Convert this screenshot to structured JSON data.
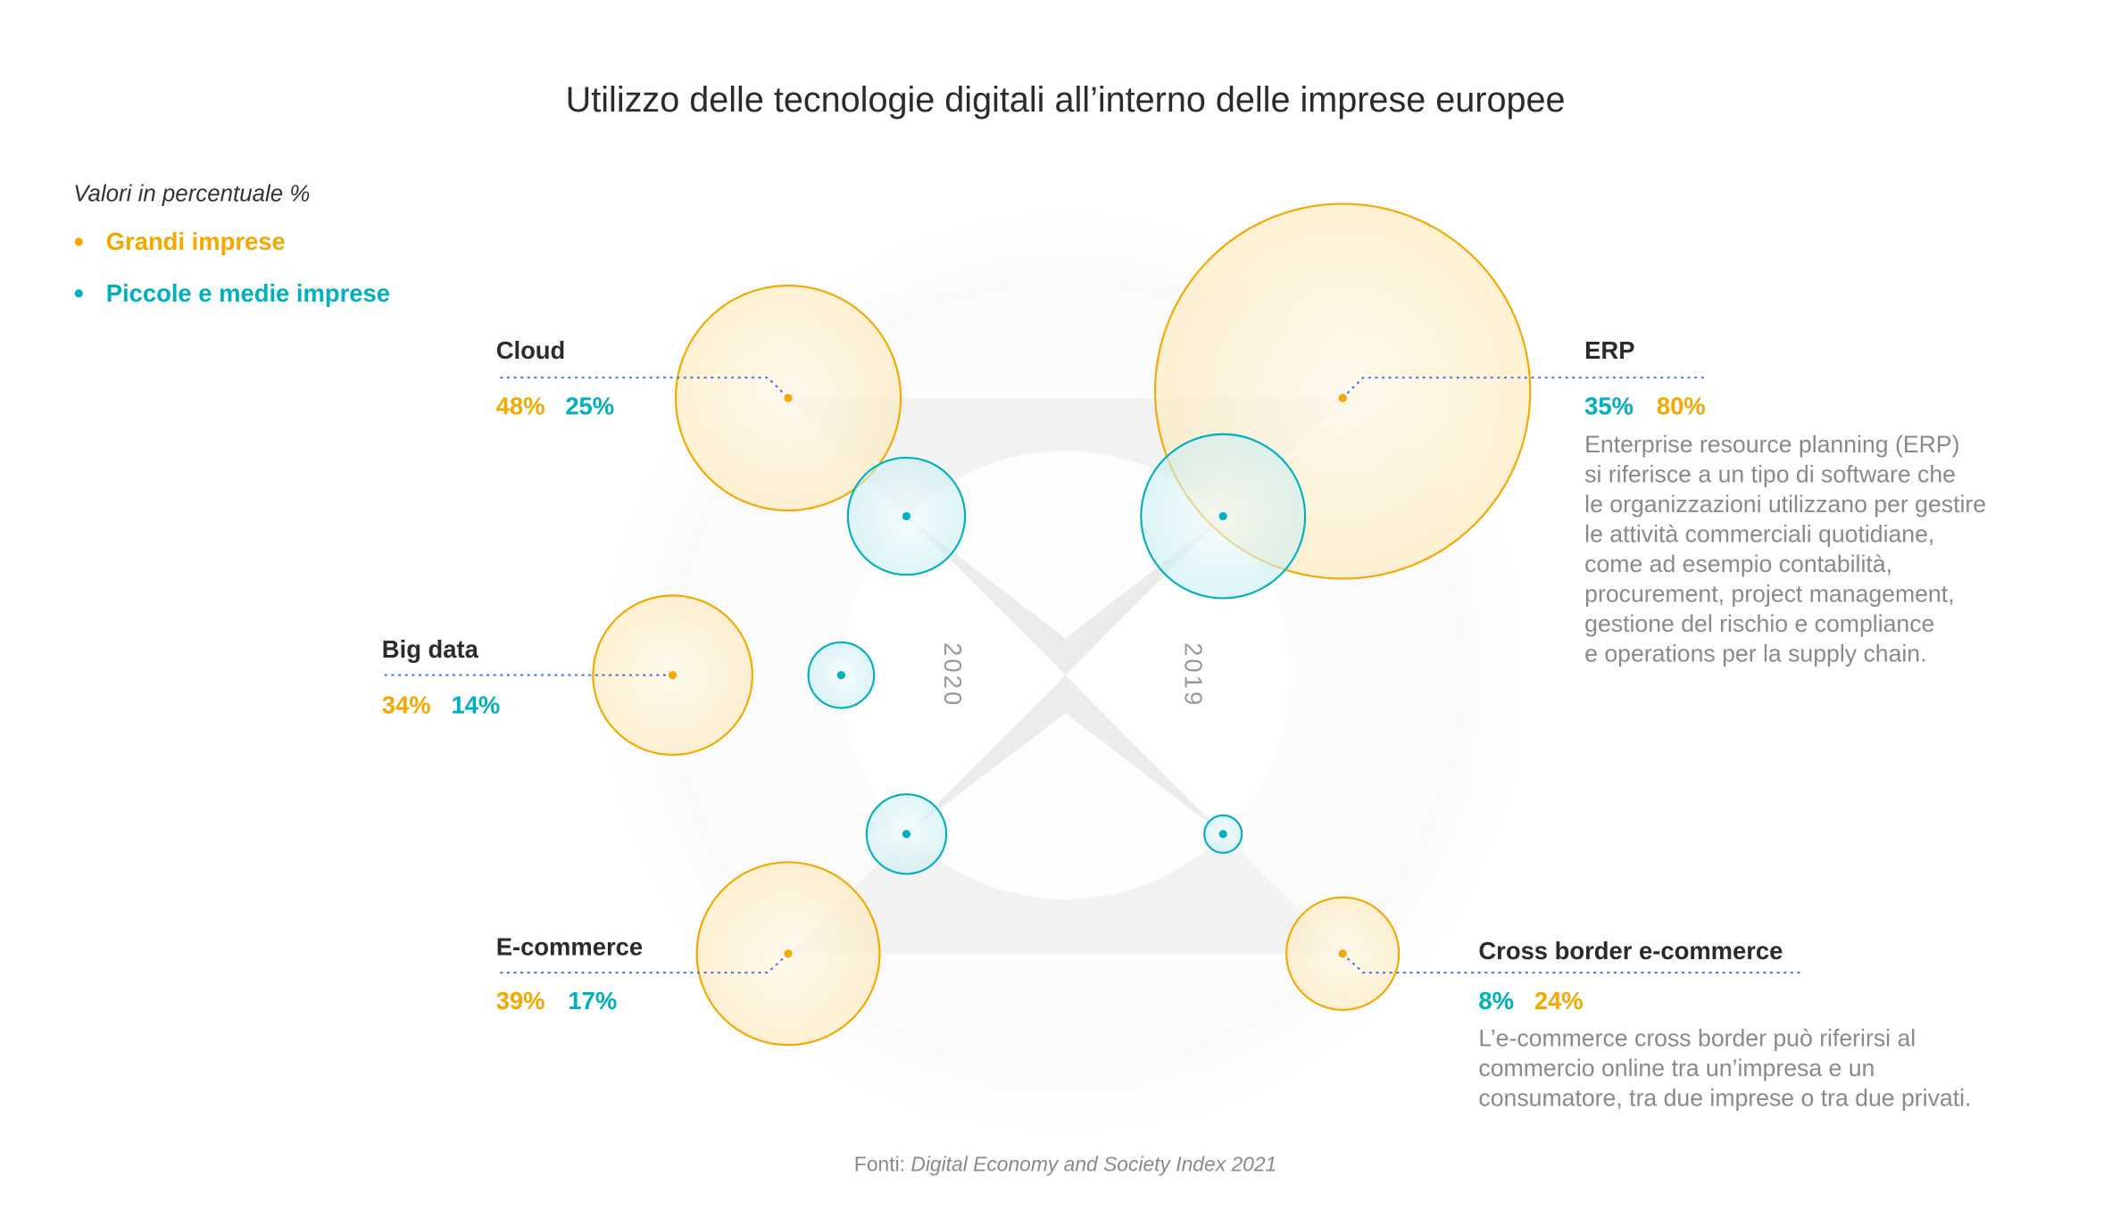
{
  "colors": {
    "large": "#F5A800",
    "sme": "#00AFC0",
    "connector": "#4A6FE0"
  },
  "chart_data": {
    "type": "bubble",
    "title": "Utilizzo delle tecnologie digitali all’interno delle imprese europee",
    "note": "Valori in percentuale %",
    "legend": [
      {
        "name": "Grandi imprese",
        "color": "#F5A800"
      },
      {
        "name": "Piccole e medie imprese",
        "color": "#00AFC0"
      }
    ],
    "years": [
      "2020",
      "2019"
    ],
    "categories": [
      {
        "name": "Cloud",
        "year": "2020",
        "large": 48,
        "sme": 25,
        "large_label": "48%",
        "sme_label": "25%"
      },
      {
        "name": "Big data",
        "year": "2020",
        "large": 34,
        "sme": 14,
        "large_label": "34%",
        "sme_label": "14%"
      },
      {
        "name": "E-commerce",
        "year": "2020",
        "large": 39,
        "sme": 17,
        "large_label": "39%",
        "sme_label": "17%"
      },
      {
        "name": "ERP",
        "year": "2019",
        "large": 80,
        "sme": 35,
        "large_label": "80%",
        "sme_label": "35%",
        "description": [
          "Enterprise resource planning (ERP)",
          "si riferisce a un tipo di software che",
          "le organizzazioni utilizzano per gestire",
          "le attività commerciali quotidiane,",
          "come ad esempio contabilità,",
          "procurement, project management,",
          "gestione del rischio e compliance",
          "e operations per la supply chain."
        ]
      },
      {
        "name": "Cross border e-commerce",
        "year": "2019",
        "large": 24,
        "sme": 8,
        "large_label": "24%",
        "sme_label": "8%",
        "description": [
          "L’e-commerce cross border può riferirsi al",
          "commercio online tra un’impresa e un",
          "consumatore, tra due imprese o tra due privati."
        ]
      }
    ],
    "source_prefix": "Fonti:",
    "source": "Digital Economy and Society Index 2021"
  }
}
